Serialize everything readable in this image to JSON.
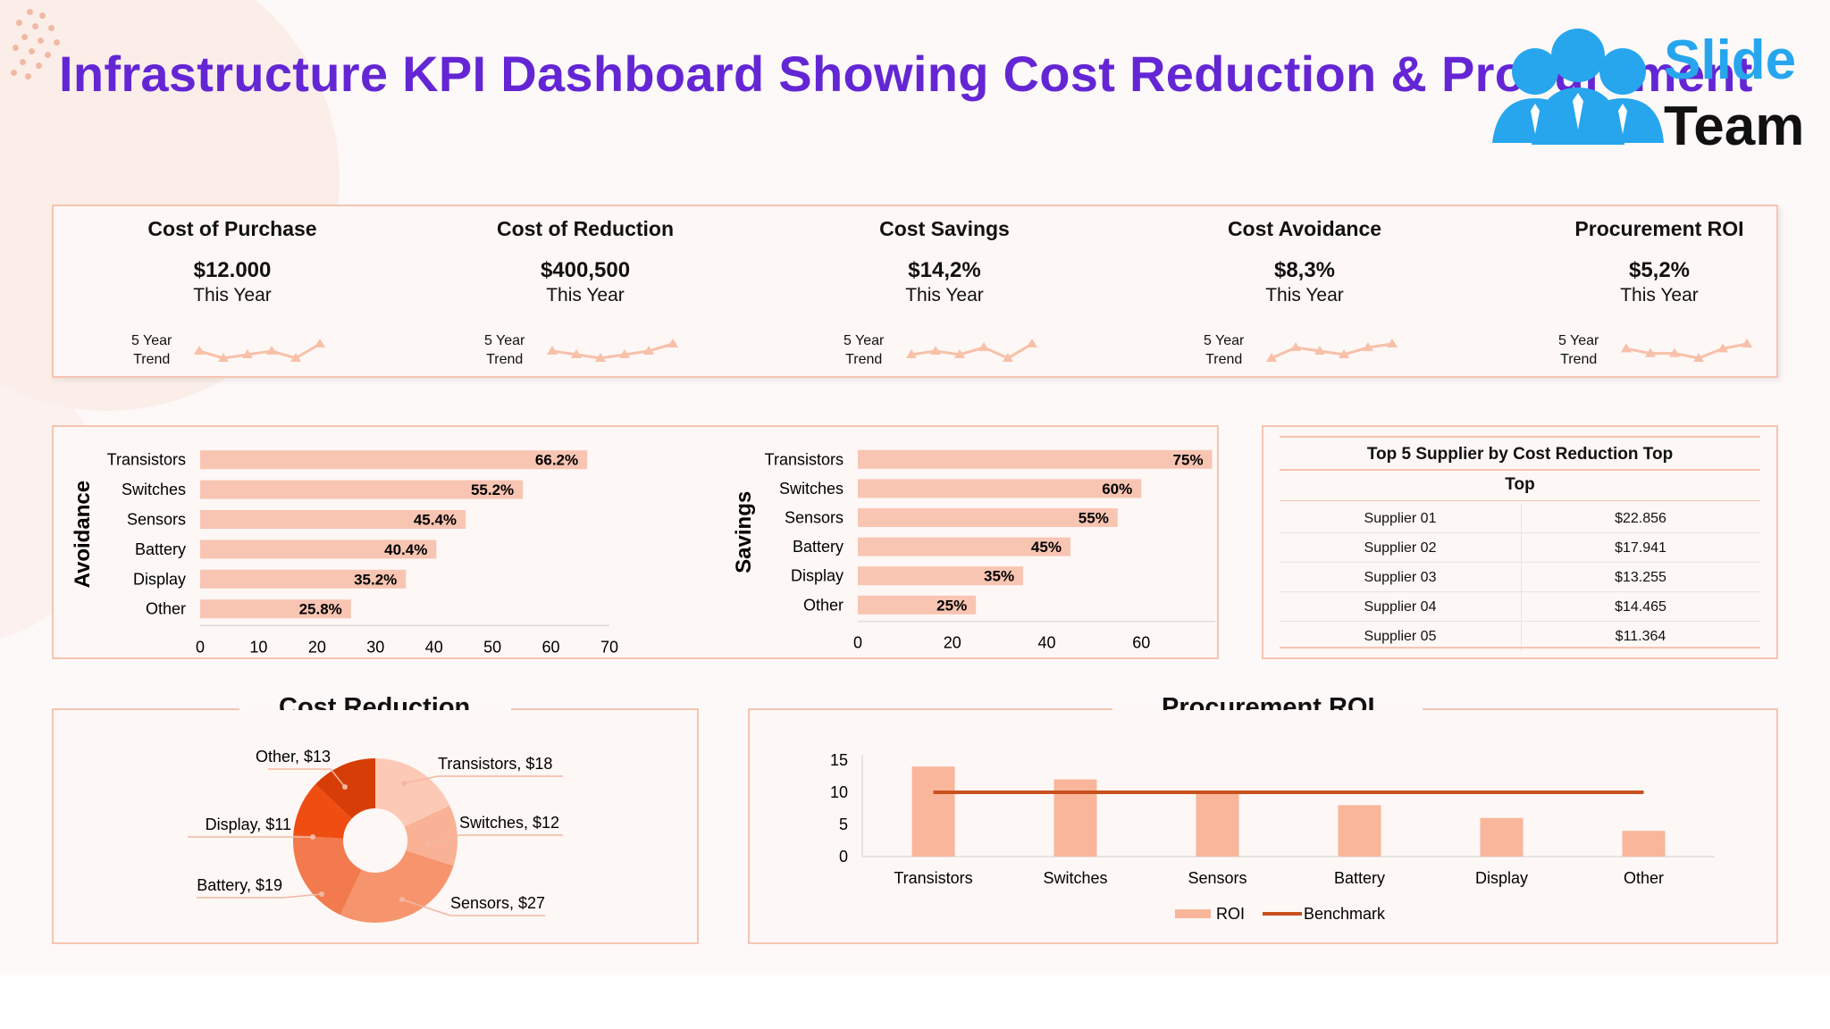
{
  "title": "Infrastructure KPI Dashboard Showing Cost Reduction & Procurement",
  "logo": {
    "word1": "Slide",
    "word2": "Team"
  },
  "kpis": [
    {
      "label": "Cost of Purchase",
      "value": "$12.000",
      "sub": "This Year",
      "trend_label_1": "5 Year",
      "trend_label_2": "Trend",
      "trend": [
        3,
        1,
        2,
        3,
        1,
        5
      ]
    },
    {
      "label": "Cost of Reduction",
      "value": "$400,500",
      "sub": "This Year",
      "trend_label_1": "5 Year",
      "trend_label_2": "Trend",
      "trend": [
        3,
        2,
        1,
        2,
        3,
        5
      ]
    },
    {
      "label": "Cost Savings",
      "value": "$14,2%",
      "sub": "This Year",
      "trend_label_1": "5 Year",
      "trend_label_2": "Trend",
      "trend": [
        2,
        3,
        2,
        4,
        1,
        5
      ]
    },
    {
      "label": "Cost Avoidance",
      "value": "$8,3%",
      "sub": "This Year",
      "trend_label_1": "5 Year",
      "trend_label_2": "Trend",
      "trend": [
        1,
        4,
        3,
        2,
        4,
        5
      ]
    },
    {
      "label": "Procurement ROI",
      "value": "$5,2%",
      "sub": "This Year",
      "trend_label_1": "5 Year",
      "trend_label_2": "Trend",
      "trend": [
        3,
        2,
        2,
        1,
        3,
        4
      ]
    }
  ],
  "chart_data": [
    {
      "type": "bar",
      "orientation": "horizontal",
      "ylabel": "Avoidance",
      "categories": [
        "Transistors",
        "Switches",
        "Sensors",
        "Battery",
        "Display",
        "Other"
      ],
      "values": [
        66.2,
        55.2,
        45.4,
        40.4,
        35.2,
        25.8
      ],
      "value_labels": [
        "66.2%",
        "55.2%",
        "45.4%",
        "40.4%",
        "35.2%",
        "25.8%"
      ],
      "xlim": [
        0,
        70
      ],
      "xticks": [
        "0",
        "10",
        "20",
        "30",
        "40",
        "50",
        "60",
        "70"
      ],
      "color": "#f9c5b3"
    },
    {
      "type": "bar",
      "orientation": "horizontal",
      "ylabel": "Savings",
      "categories": [
        "Transistors",
        "Switches",
        "Sensors",
        "Battery",
        "Display",
        "Other"
      ],
      "values": [
        75,
        60,
        55,
        45,
        35,
        25
      ],
      "value_labels": [
        "75%",
        "60%",
        "55%",
        "45%",
        "35%",
        "25%"
      ],
      "xlim": [
        0,
        80
      ],
      "xticks": [
        "0",
        "20",
        "40",
        "60",
        "80"
      ],
      "color": "#f9c5b3"
    },
    {
      "type": "pie",
      "donut": true,
      "title": "Cost Reduction",
      "categories": [
        "Transistors",
        "Switches",
        "Sensors",
        "Battery",
        "Display",
        "Other"
      ],
      "values": [
        18,
        12,
        27,
        19,
        11,
        13
      ],
      "labels": [
        "Transistors, $18",
        "Switches, $12",
        "Sensors, $27",
        "Battery, $19",
        "Display, $11",
        "Other, $13"
      ],
      "colors": [
        "#fcc9b6",
        "#f9b295",
        "#f6956d",
        "#f27a4e",
        "#f04d13",
        "#d63d07"
      ]
    },
    {
      "type": "bar",
      "title": "Procurement ROI",
      "categories": [
        "Transistors",
        "Switches",
        "Sensors",
        "Battery",
        "Display",
        "Other"
      ],
      "series": [
        {
          "name": "ROI",
          "type": "bar",
          "values": [
            14,
            12,
            10,
            8,
            6,
            4
          ],
          "color": "#f9b69a"
        },
        {
          "name": "Benchmark",
          "type": "line",
          "values": [
            10,
            10,
            10,
            10,
            10,
            10
          ],
          "color": "#c8501c"
        }
      ],
      "ylim": [
        0,
        15
      ],
      "yticks": [
        "0",
        "5",
        "10",
        "15"
      ],
      "legend": "bottom"
    }
  ],
  "supplier_table": {
    "title": "Top 5 Supplier by Cost Reduction Top",
    "subtitle": "Top",
    "rows": [
      {
        "name": "Supplier 01",
        "value": "$22.856"
      },
      {
        "name": "Supplier 02",
        "value": "$17.941"
      },
      {
        "name": "Supplier 03",
        "value": "$13.255"
      },
      {
        "name": "Supplier 04",
        "value": "$14.465"
      },
      {
        "name": "Supplier 05",
        "value": "$11.364"
      }
    ]
  }
}
